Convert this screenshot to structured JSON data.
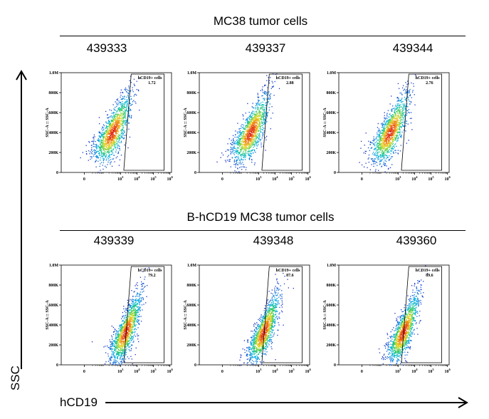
{
  "chart_data": {
    "type": "scatter",
    "x_axis_label": "hCD19",
    "y_axis_label": "SSC",
    "panel_y_label": "SSC-A :: SSC-A",
    "x_ticks": [
      "0",
      "10^3",
      "10^4",
      "10^5",
      "10^6"
    ],
    "y_ticks": [
      "0",
      "200K",
      "400K",
      "600K",
      "800K",
      "1.0M"
    ],
    "y_range": [
      0,
      1000000
    ],
    "groups": [
      {
        "title": "MC38 tumor cells",
        "panels": [
          {
            "sample": "439333",
            "gate_label": "hCD19+ cells",
            "gate_percent": "1.72",
            "positive": false
          },
          {
            "sample": "439337",
            "gate_label": "hCD19+ cells",
            "gate_percent": "2.88",
            "positive": false
          },
          {
            "sample": "439344",
            "gate_label": "hCD19+ cells",
            "gate_percent": "2.76",
            "positive": false
          }
        ]
      },
      {
        "title": "B-hCD19 MC38 tumor cells",
        "panels": [
          {
            "sample": "439339",
            "gate_label": "hCD19+ cells",
            "gate_percent": "79.2",
            "positive": true
          },
          {
            "sample": "439348",
            "gate_label": "hCD19+ cells",
            "gate_percent": "87.6",
            "positive": true
          },
          {
            "sample": "439360",
            "gate_label": "hCD19+ cells",
            "gate_percent": "89.6",
            "positive": true
          }
        ]
      }
    ]
  }
}
